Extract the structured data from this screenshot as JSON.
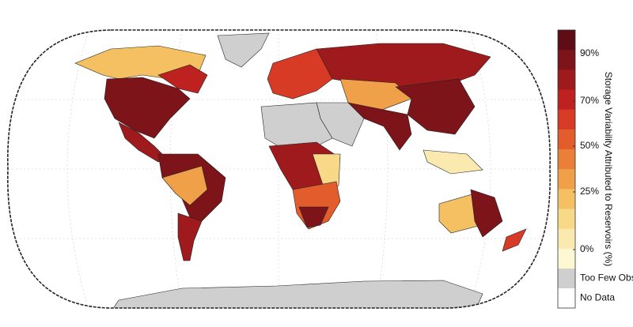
{
  "colorbar": {
    "title": "Storage Variability Attributed to Reservoirs (%)",
    "colors": [
      "#5e0d16",
      "#7d1419",
      "#9e1a1c",
      "#bd2220",
      "#d73a25",
      "#e35d2c",
      "#ea7f37",
      "#f0a048",
      "#f5c062",
      "#f8d988",
      "#fbeab0",
      "#fdf7d2"
    ],
    "tick_labels": [
      "90%",
      "70%",
      "50%",
      "25%",
      "0%"
    ],
    "category_labels": [
      "Too Few Obs",
      "No Data"
    ],
    "category_colors": [
      "#cfcfcf",
      "#ffffff"
    ]
  }
}
